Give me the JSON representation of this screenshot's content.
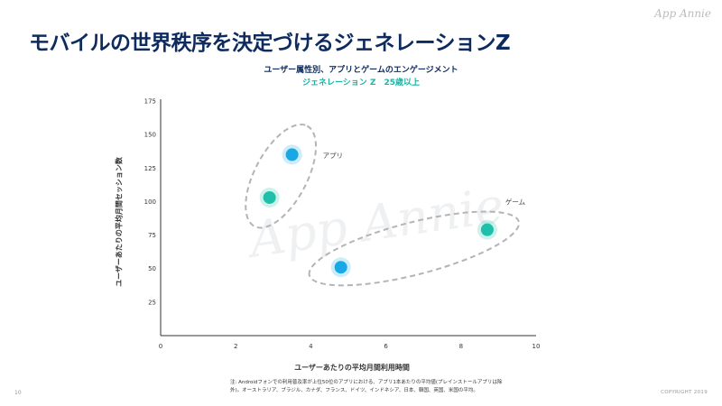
{
  "logo_text": "App Annie",
  "title": "モバイルの世界秩序を決定づけるジェネレーションZ",
  "subtitle": "ユーザー属性別、アプリとゲームのエンゲージメント",
  "subtitle2": "ジェネレーション Z　25歳以上",
  "footnote": "注: Androidフォンでの利用普及率が上位50位のアプリにおける、アプリ1本あたりの平均値(プレインストールアプリは除外)。オーストラリア、ブラジル、カナダ、フランス、ドイツ、インドネシア、日本、韓国、英国、米国の平均。",
  "page_number": "10",
  "copyright": "COPYRIGHT 2019",
  "colors": {
    "genz": "#1ec0aa",
    "age25plus": "#16a9e6",
    "title": "#0d2b5e"
  },
  "chart_data": {
    "type": "scatter",
    "xlabel": "ユーザーあたりの平均月間利用時間",
    "ylabel": "ユーザーあたりの平均月間セッション数",
    "xlim": [
      0,
      10
    ],
    "ylim": [
      0,
      175
    ],
    "x_ticks": [
      "0",
      "2",
      "4",
      "6",
      "8",
      "10"
    ],
    "y_ticks": [
      "25",
      "50",
      "75",
      "100",
      "125",
      "150",
      "175"
    ],
    "grid": false,
    "points": [
      {
        "group": "アプリ",
        "series": "ジェネレーション Z",
        "x": 2.9,
        "y": 103,
        "color": "#1ec0aa"
      },
      {
        "group": "アプリ",
        "series": "25歳以上",
        "x": 3.5,
        "y": 135,
        "color": "#16a9e6"
      },
      {
        "group": "ゲーム",
        "series": "ジェネレーション Z",
        "x": 8.7,
        "y": 79,
        "color": "#1ec0aa"
      },
      {
        "group": "ゲーム",
        "series": "25歳以上",
        "x": 4.8,
        "y": 51,
        "color": "#16a9e6"
      }
    ],
    "annotations": [
      "アプリ",
      "ゲーム"
    ]
  }
}
